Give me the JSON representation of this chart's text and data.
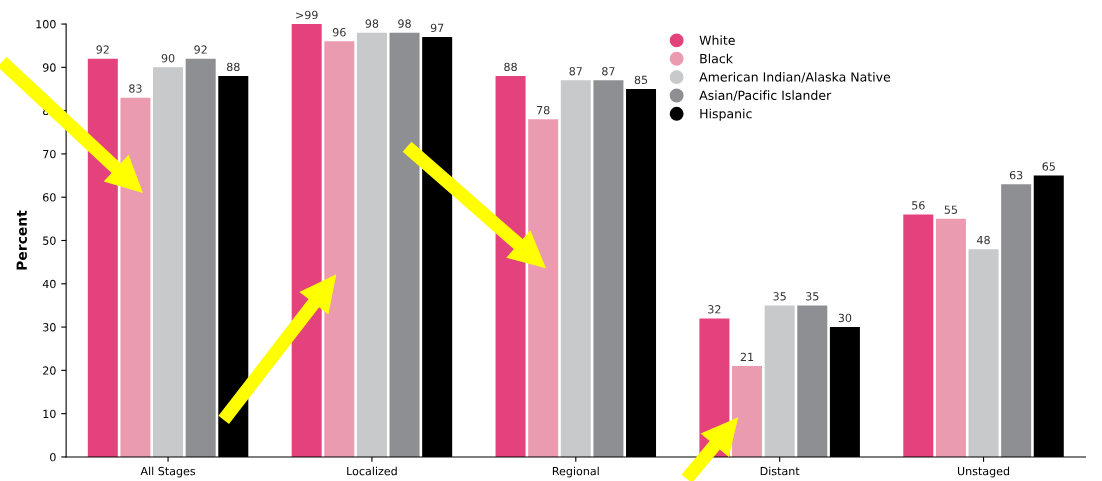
{
  "chart_data": {
    "type": "bar",
    "ylabel": "Percent",
    "categories": [
      "All Stages",
      "Localized",
      "Regional",
      "Distant",
      "Unstaged"
    ],
    "series": [
      {
        "name": "White",
        "color": "#e4427d",
        "values": [
          92,
          100,
          88,
          32,
          56
        ],
        "value_labels": [
          "92",
          ">99",
          "88",
          "32",
          "56"
        ]
      },
      {
        "name": "Black",
        "color": "#eb9bb0",
        "values": [
          83,
          96,
          78,
          21,
          55
        ],
        "value_labels": [
          "83",
          "96",
          "78",
          "21",
          "55"
        ]
      },
      {
        "name": "American Indian/Alaska Native",
        "color": "#c8c9cb",
        "values": [
          90,
          98,
          87,
          35,
          48
        ],
        "value_labels": [
          "90",
          "98",
          "87",
          "35",
          "48"
        ]
      },
      {
        "name": "Asian/Pacific Islander",
        "color": "#8e8f92",
        "values": [
          92,
          98,
          87,
          35,
          63
        ],
        "value_labels": [
          "92",
          "98",
          "87",
          "35",
          "63"
        ]
      },
      {
        "name": "Hispanic",
        "color": "#000000",
        "values": [
          88,
          97,
          85,
          30,
          65
        ],
        "value_labels": [
          "88",
          "97",
          "85",
          "30",
          "65"
        ]
      }
    ],
    "ylim": [
      0,
      100
    ],
    "yticks": [
      0,
      10,
      20,
      30,
      40,
      50,
      60,
      70,
      80,
      90,
      100
    ],
    "grid": false,
    "legend": "top right"
  }
}
